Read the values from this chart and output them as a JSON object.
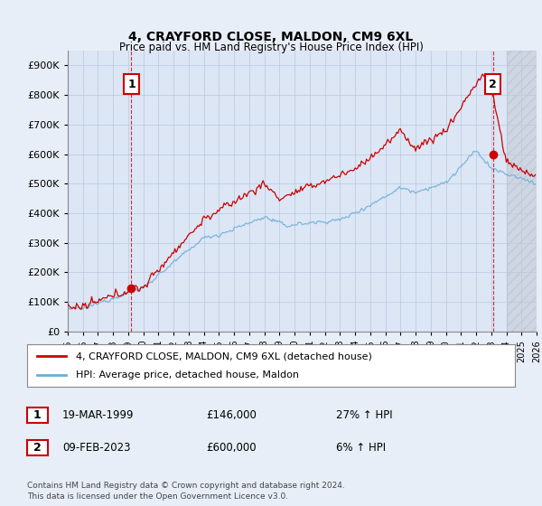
{
  "title": "4, CRAYFORD CLOSE, MALDON, CM9 6XL",
  "subtitle": "Price paid vs. HM Land Registry's House Price Index (HPI)",
  "ylim": [
    0,
    950000
  ],
  "yticks": [
    0,
    100000,
    200000,
    300000,
    400000,
    500000,
    600000,
    700000,
    800000,
    900000
  ],
  "ytick_labels": [
    "£0",
    "£100K",
    "£200K",
    "£300K",
    "£400K",
    "£500K",
    "£600K",
    "£700K",
    "£800K",
    "£900K"
  ],
  "xlim_start": 1995.5,
  "xlim_end": 2026.0,
  "hpi_color": "#6baed6",
  "price_color": "#cc0000",
  "sale1_x": 1999.21,
  "sale1_y": 146000,
  "sale2_x": 2023.11,
  "sale2_y": 600000,
  "legend_line1": "4, CRAYFORD CLOSE, MALDON, CM9 6XL (detached house)",
  "legend_line2": "HPI: Average price, detached house, Maldon",
  "table_row1": [
    "1",
    "19-MAR-1999",
    "£146,000",
    "27% ↑ HPI"
  ],
  "table_row2": [
    "2",
    "09-FEB-2023",
    "£600,000",
    "6% ↑ HPI"
  ],
  "footnote": "Contains HM Land Registry data © Crown copyright and database right 2024.\nThis data is licensed under the Open Government Licence v3.0.",
  "background_color": "#e8eef7",
  "plot_bg_color": "#dce6f5",
  "grid_color": "#b8c8e0"
}
